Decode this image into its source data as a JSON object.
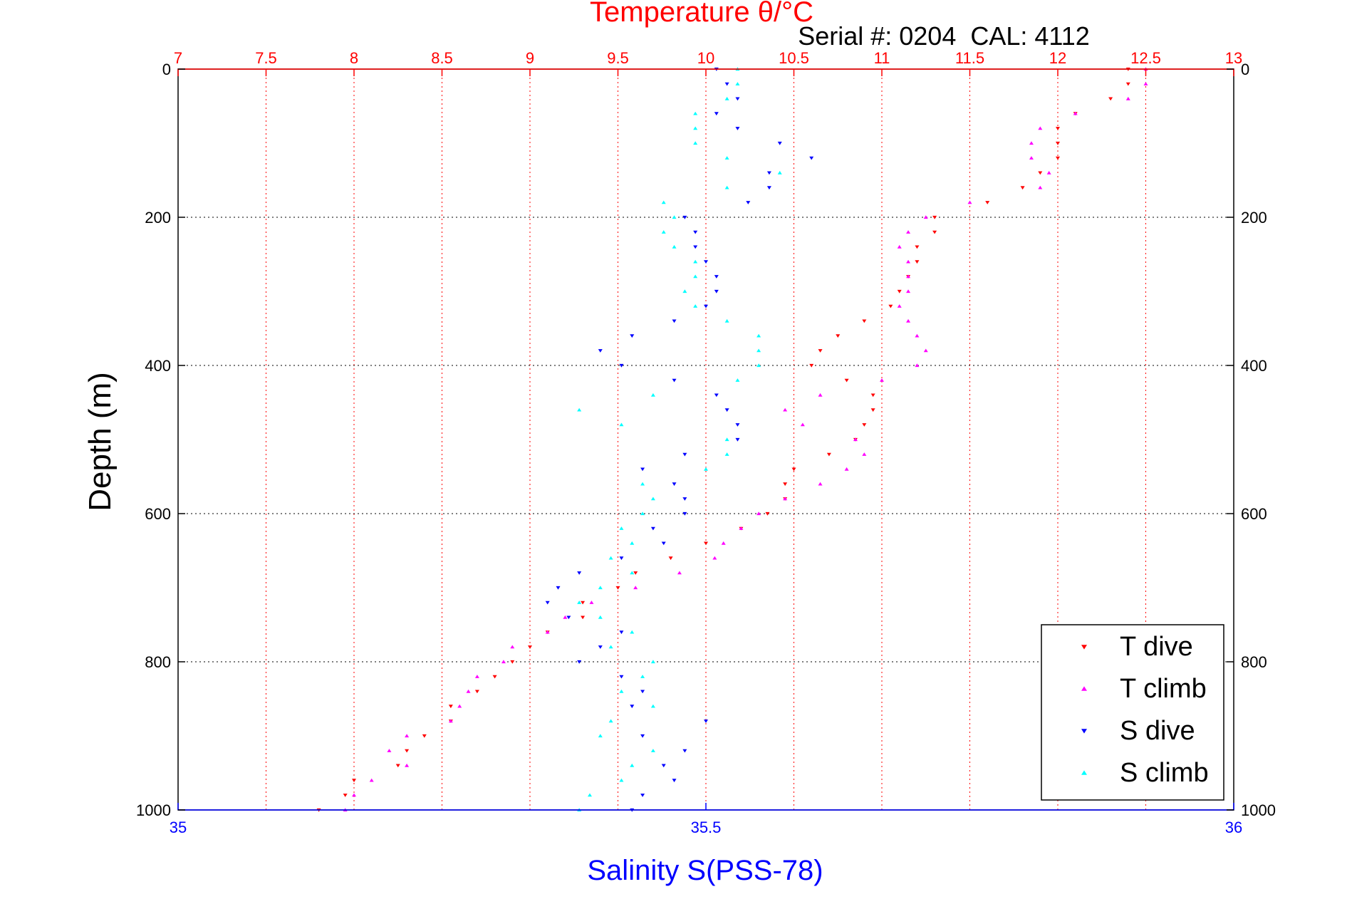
{
  "chart_data": {
    "type": "scatter",
    "title": "Temperature θ/°C",
    "annotation": "Serial #: 0204  CAL: 4112",
    "xlabel_top": "Temperature θ/°C",
    "xlabel_bottom": "Salinity S(PSS-78)",
    "ylabel": "Depth (m)",
    "grid": true,
    "legend_position": "bottom-right",
    "colors": {
      "temp_axis": "#ff0000",
      "sal_axis": "#0000ff",
      "t_dive": "#ff0000",
      "t_climb": "#ff00ff",
      "s_dive": "#0000ff",
      "s_climb": "#00ffff"
    },
    "x_top": {
      "lim": [
        7,
        13
      ],
      "ticks": [
        "7",
        "7.5",
        "8",
        "8.5",
        "9",
        "9.5",
        "10",
        "10.5",
        "11",
        "11.5",
        "12",
        "12.5",
        "13"
      ]
    },
    "x_bottom": {
      "lim": [
        35,
        36
      ],
      "ticks": [
        "35",
        "35.5",
        "36"
      ]
    },
    "y": {
      "lim": [
        0,
        1000
      ],
      "ticks": [
        "0",
        "200",
        "400",
        "600",
        "800",
        "1000"
      ],
      "reversed": true
    },
    "series": [
      {
        "name": "T dive",
        "axis": "top",
        "marker": "triangle-down",
        "depth": [
          0,
          20,
          40,
          60,
          80,
          100,
          120,
          140,
          160,
          180,
          200,
          220,
          240,
          260,
          280,
          300,
          320,
          340,
          360,
          380,
          400,
          420,
          440,
          460,
          480,
          500,
          520,
          540,
          560,
          580,
          600,
          620,
          640,
          660,
          680,
          700,
          720,
          740,
          760,
          780,
          800,
          820,
          840,
          860,
          880,
          900,
          920,
          940,
          960,
          980,
          1000
        ],
        "values": [
          12.4,
          12.4,
          12.3,
          12.1,
          12.0,
          12.0,
          12.0,
          11.9,
          11.8,
          11.6,
          11.3,
          11.3,
          11.2,
          11.2,
          11.15,
          11.1,
          11.05,
          10.9,
          10.75,
          10.65,
          10.6,
          10.8,
          10.95,
          10.95,
          10.9,
          10.85,
          10.7,
          10.5,
          10.45,
          10.45,
          10.35,
          10.2,
          10.0,
          9.8,
          9.6,
          9.5,
          9.3,
          9.3,
          9.1,
          9.0,
          8.9,
          8.8,
          8.7,
          8.55,
          8.55,
          8.4,
          8.3,
          8.25,
          8.0,
          7.95,
          7.8
        ]
      },
      {
        "name": "T climb",
        "axis": "top",
        "marker": "triangle-up",
        "depth": [
          0,
          20,
          40,
          60,
          80,
          100,
          120,
          140,
          160,
          180,
          200,
          220,
          240,
          260,
          280,
          300,
          320,
          340,
          360,
          380,
          400,
          420,
          440,
          460,
          480,
          500,
          520,
          540,
          560,
          580,
          600,
          620,
          640,
          660,
          680,
          700,
          720,
          740,
          760,
          780,
          800,
          820,
          840,
          860,
          880,
          900,
          920,
          940,
          960,
          980,
          1000
        ],
        "values": [
          12.5,
          12.5,
          12.4,
          12.1,
          11.9,
          11.85,
          11.85,
          11.95,
          11.9,
          11.5,
          11.25,
          11.15,
          11.1,
          11.15,
          11.15,
          11.15,
          11.1,
          11.15,
          11.2,
          11.25,
          11.2,
          11.0,
          10.65,
          10.45,
          10.55,
          10.85,
          10.9,
          10.8,
          10.65,
          10.45,
          10.3,
          10.2,
          10.1,
          10.05,
          9.85,
          9.6,
          9.35,
          9.2,
          9.1,
          8.9,
          8.85,
          8.7,
          8.65,
          8.6,
          8.55,
          8.3,
          8.2,
          8.3,
          8.1,
          8.0,
          7.95
        ]
      },
      {
        "name": "S dive",
        "axis": "bottom",
        "marker": "triangle-down",
        "depth": [
          0,
          20,
          40,
          60,
          80,
          100,
          120,
          140,
          160,
          180,
          200,
          220,
          240,
          260,
          280,
          300,
          320,
          340,
          360,
          380,
          400,
          420,
          440,
          460,
          480,
          500,
          520,
          540,
          560,
          580,
          600,
          620,
          640,
          660,
          680,
          700,
          720,
          740,
          760,
          780,
          800,
          820,
          840,
          860,
          880,
          900,
          920,
          940,
          960,
          980,
          1000
        ],
        "values": [
          35.51,
          35.52,
          35.53,
          35.51,
          35.53,
          35.57,
          35.6,
          35.56,
          35.56,
          35.54,
          35.48,
          35.49,
          35.49,
          35.5,
          35.51,
          35.51,
          35.5,
          35.47,
          35.43,
          35.4,
          35.42,
          35.47,
          35.51,
          35.52,
          35.53,
          35.53,
          35.48,
          35.44,
          35.47,
          35.48,
          35.48,
          35.45,
          35.46,
          35.42,
          35.38,
          35.36,
          35.35,
          35.37,
          35.42,
          35.4,
          35.38,
          35.42,
          35.44,
          35.43,
          35.5,
          35.44,
          35.48,
          35.46,
          35.47,
          35.44,
          35.43
        ]
      },
      {
        "name": "S climb",
        "axis": "bottom",
        "marker": "triangle-up",
        "depth": [
          0,
          20,
          40,
          60,
          80,
          100,
          120,
          140,
          160,
          180,
          200,
          220,
          240,
          260,
          280,
          300,
          320,
          340,
          360,
          380,
          400,
          420,
          440,
          460,
          480,
          500,
          520,
          540,
          560,
          580,
          600,
          620,
          640,
          660,
          680,
          700,
          720,
          740,
          760,
          780,
          800,
          820,
          840,
          860,
          880,
          900,
          920,
          940,
          960,
          980,
          1000
        ],
        "values": [
          35.53,
          35.53,
          35.52,
          35.49,
          35.49,
          35.49,
          35.52,
          35.57,
          35.52,
          35.46,
          35.47,
          35.46,
          35.47,
          35.49,
          35.49,
          35.48,
          35.49,
          35.52,
          35.55,
          35.55,
          35.55,
          35.53,
          35.45,
          35.38,
          35.42,
          35.52,
          35.52,
          35.5,
          35.44,
          35.45,
          35.44,
          35.42,
          35.43,
          35.41,
          35.43,
          35.4,
          35.38,
          35.4,
          35.43,
          35.41,
          35.45,
          35.44,
          35.42,
          35.45,
          35.41,
          35.4,
          35.45,
          35.43,
          35.42,
          35.39,
          35.38
        ]
      }
    ]
  }
}
